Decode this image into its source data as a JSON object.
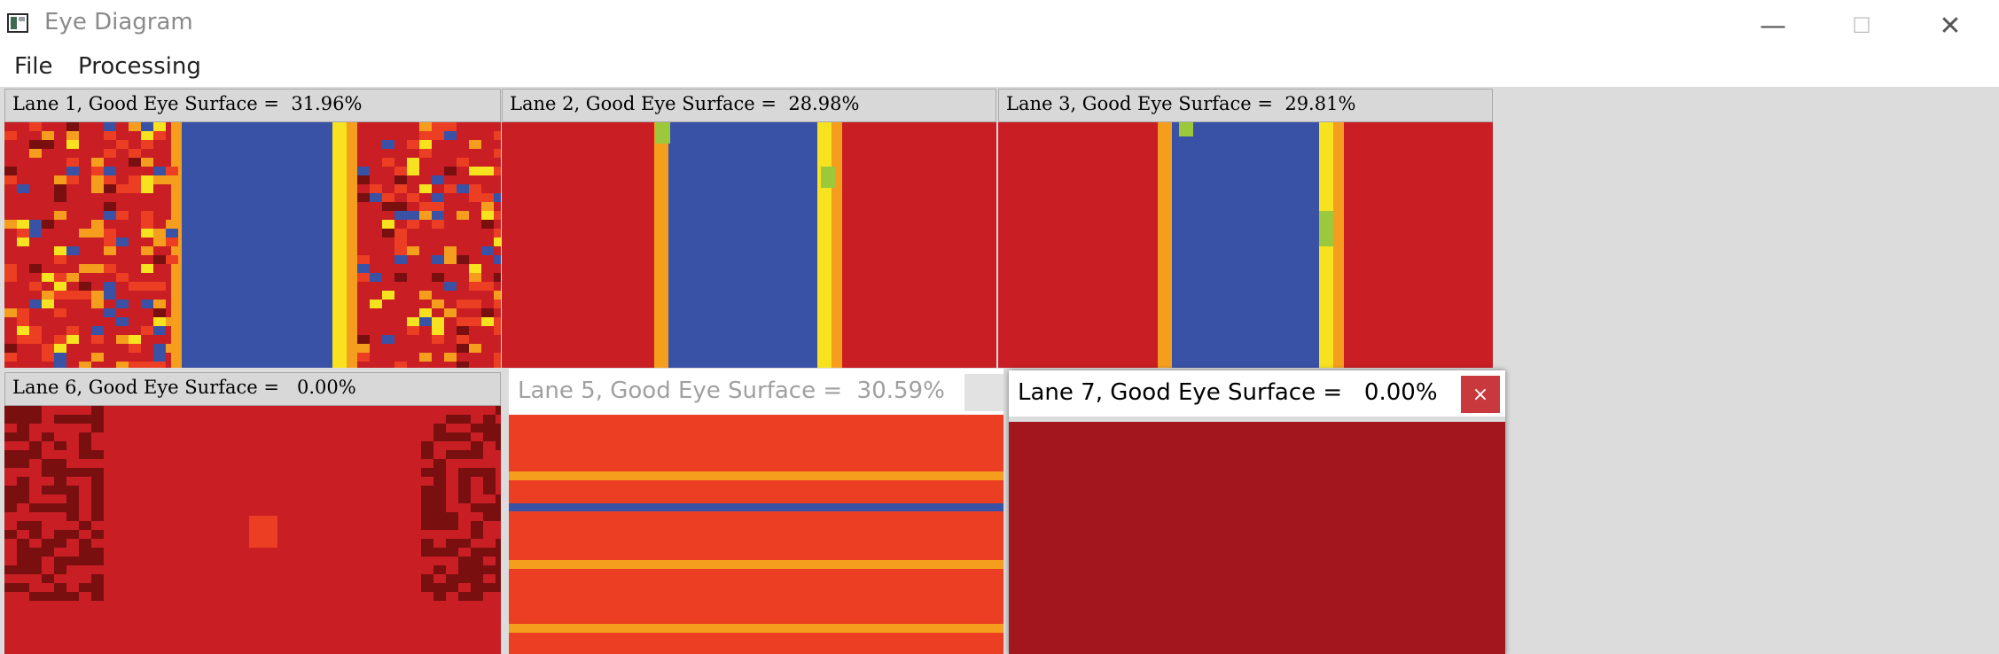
{
  "window": {
    "title": "Eye Diagram",
    "minimize_glyph": "—",
    "maximize_glyph": "☐",
    "close_glyph": "✕"
  },
  "menu": [
    {
      "label": "File"
    },
    {
      "label": "Processing"
    }
  ],
  "panels": {
    "lane1": {
      "title": "Lane 1, Good Eye Surface =  31.96%"
    },
    "lane2": {
      "title": "Lane 2, Good Eye Surface =  28.98%"
    },
    "lane3": {
      "title": "Lane 3, Good Eye Surface =  29.81%"
    },
    "lane6": {
      "title": "Lane 6, Good Eye Surface =   0.00%"
    },
    "lane5": {
      "title": "Lane 5, Good Eye Surface =  30.59%"
    },
    "lane7": {
      "title": "Lane 7, Good Eye Surface =   0.00%",
      "close_glyph": "×"
    }
  },
  "colors": {
    "red": "#c81e24",
    "dark_red": "#7a0f10",
    "blue": "#3a52a6",
    "yellow": "#f6e21e",
    "orange": "#f59e1e",
    "green": "#9cc83c",
    "orange_red": "#ec3e22",
    "lane7_red": "#a3161e"
  }
}
